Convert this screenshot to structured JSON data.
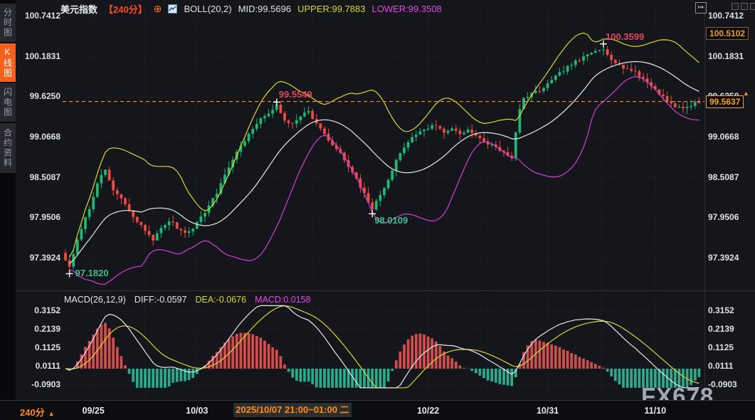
{
  "header": {
    "title": "美元指数",
    "timeframe": "【240分】",
    "boll_label": "BOLL(20,2)",
    "mid": "MID:99.5696",
    "upper": "UPPER:99.7883",
    "lower": "LOWER:99.3508"
  },
  "icons": {
    "plus_circle": "⊕",
    "collapse_panel": "↦",
    "up_arrow": "▲"
  },
  "sidebar": {
    "tabs": [
      {
        "label": "分时图",
        "active": false
      },
      {
        "label": "K线图",
        "active": true
      },
      {
        "label": "闪电图",
        "active": false
      },
      {
        "label": "合约资料",
        "active": false
      }
    ]
  },
  "right_axis": {
    "upper_box": "100.5102",
    "price_box": "99.5637"
  },
  "macd_header": {
    "params": "MACD(26,12,9)",
    "diff": "DIFF:-0.0597",
    "dea": "DEA:-0.0676",
    "macd": "MACD:0.0158"
  },
  "bottom_bar": {
    "timeframe": "240分",
    "selected_range": "2025/10/07 21:00~01:00 二"
  },
  "watermark": "FX678",
  "colors": {
    "up": "#22b573",
    "down": "#ea4d45",
    "boll_upper": "#d8d833",
    "boll_mid": "#e9e9ec",
    "boll_lower": "#d63fd6",
    "accent_orange": "#ff8d1f",
    "ann_high": "#e0485a",
    "ann_low": "#3dbf8f",
    "hist_pos": "#cf4e4e",
    "hist_neg": "#2fa98c",
    "grid": "#2b2e36",
    "axis_text": "#dde1e8"
  },
  "chart_data": {
    "type": "candlestick_with_macd",
    "symbol": "美元指数",
    "interval": "240分",
    "bars": 160,
    "current_price": 99.5637,
    "price_ticks": [
      100.7412,
      100.1831,
      99.625,
      99.0668,
      98.5087,
      97.9506,
      97.3924
    ],
    "macd_ticks": [
      0.3152,
      0.2139,
      0.1125,
      0.0111,
      -0.0903
    ],
    "boll": {
      "period": 20,
      "dev": 2,
      "mid": 99.5696,
      "upper": 99.7883,
      "lower": 99.3508
    },
    "macd": {
      "fast": 26,
      "slow": 12,
      "signal": 9,
      "diff": -0.0597,
      "dea": -0.0676,
      "hist": 0.0158
    },
    "price_path": [
      [
        0,
        97.38
      ],
      [
        1,
        97.26
      ],
      [
        2,
        97.45
      ],
      [
        4,
        97.82
      ],
      [
        6,
        98.08
      ],
      [
        8,
        98.45
      ],
      [
        10,
        98.6
      ],
      [
        12,
        98.34
      ],
      [
        14,
        98.22
      ],
      [
        16,
        98.04
      ],
      [
        18,
        97.9
      ],
      [
        20,
        97.78
      ],
      [
        22,
        97.66
      ],
      [
        24,
        97.8
      ],
      [
        26,
        97.92
      ],
      [
        28,
        97.82
      ],
      [
        30,
        97.75
      ],
      [
        32,
        97.82
      ],
      [
        34,
        97.96
      ],
      [
        36,
        98.12
      ],
      [
        38,
        98.3
      ],
      [
        40,
        98.56
      ],
      [
        42,
        98.76
      ],
      [
        44,
        98.96
      ],
      [
        46,
        99.1
      ],
      [
        48,
        99.26
      ],
      [
        50,
        99.36
      ],
      [
        52,
        99.46
      ],
      [
        53,
        99.5
      ],
      [
        55,
        99.3
      ],
      [
        57,
        99.26
      ],
      [
        59,
        99.38
      ],
      [
        61,
        99.42
      ],
      [
        63,
        99.26
      ],
      [
        65,
        99.1
      ],
      [
        67,
        98.96
      ],
      [
        69,
        98.84
      ],
      [
        71,
        98.66
      ],
      [
        73,
        98.48
      ],
      [
        75,
        98.28
      ],
      [
        77,
        98.08
      ],
      [
        79,
        98.26
      ],
      [
        81,
        98.5
      ],
      [
        83,
        98.74
      ],
      [
        85,
        98.94
      ],
      [
        87,
        99.06
      ],
      [
        89,
        99.16
      ],
      [
        91,
        99.2
      ],
      [
        93,
        99.24
      ],
      [
        95,
        99.12
      ],
      [
        97,
        99.2
      ],
      [
        99,
        99.12
      ],
      [
        101,
        99.18
      ],
      [
        103,
        99.08
      ],
      [
        105,
        99.0
      ],
      [
        107,
        98.96
      ],
      [
        109,
        98.9
      ],
      [
        111,
        98.8
      ],
      [
        112,
        98.78
      ],
      [
        113,
        99.12
      ],
      [
        114,
        99.48
      ],
      [
        115,
        99.6
      ],
      [
        117,
        99.66
      ],
      [
        119,
        99.72
      ],
      [
        121,
        99.8
      ],
      [
        123,
        99.9
      ],
      [
        125,
        100.0
      ],
      [
        127,
        100.08
      ],
      [
        129,
        100.14
      ],
      [
        131,
        100.2
      ],
      [
        133,
        100.26
      ],
      [
        135,
        100.3
      ],
      [
        137,
        100.16
      ],
      [
        139,
        100.06
      ],
      [
        141,
        100.02
      ],
      [
        143,
        99.96
      ],
      [
        145,
        99.88
      ],
      [
        147,
        99.78
      ],
      [
        149,
        99.68
      ],
      [
        151,
        99.58
      ],
      [
        153,
        99.5
      ],
      [
        155,
        99.46
      ],
      [
        157,
        99.52
      ],
      [
        159,
        99.56
      ]
    ],
    "annotations": [
      {
        "text": "97.1820",
        "bar": 1,
        "price": 97.182,
        "kind": "low"
      },
      {
        "text": "99.5549",
        "bar": 53,
        "price": 99.5549,
        "kind": "high"
      },
      {
        "text": "98.0109",
        "bar": 77,
        "price": 98.0109,
        "kind": "low"
      },
      {
        "text": "100.3599",
        "bar": 135,
        "price": 100.3599,
        "kind": "high"
      }
    ],
    "x_dates": [
      {
        "label": "09/25",
        "bar": 7
      },
      {
        "label": "10/03",
        "bar": 33
      },
      {
        "label": "10/22",
        "bar": 91
      },
      {
        "label": "10/31",
        "bar": 121
      },
      {
        "label": "11/10",
        "bar": 148
      }
    ]
  }
}
